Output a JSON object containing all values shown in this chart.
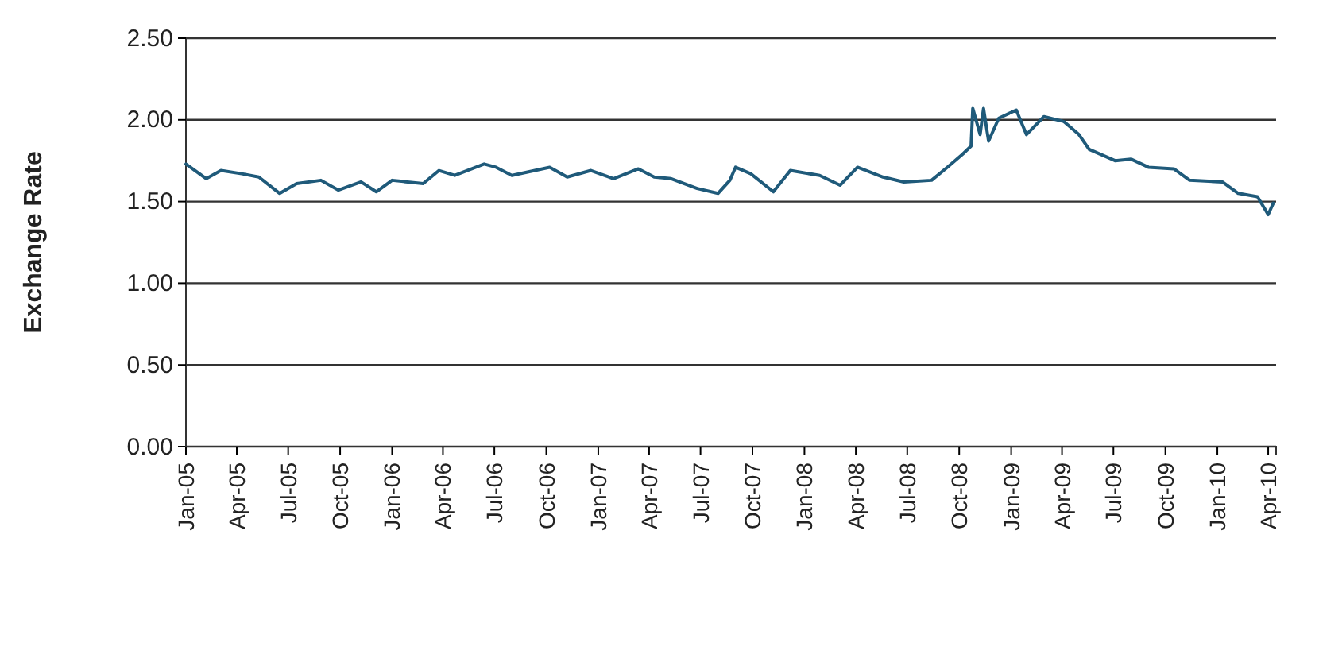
{
  "chart_data": {
    "type": "line",
    "ylabel": "Exchange Rate",
    "x": [
      "2005-01-01",
      "2005-02-06",
      "2005-03-04",
      "2005-04-10",
      "2005-05-10",
      "2005-06-16",
      "2005-07-16",
      "2005-08-28",
      "2005-09-28",
      "2005-11-07",
      "2005-12-04",
      "2006-01-01",
      "2006-02-25",
      "2006-03-25",
      "2006-04-22",
      "2006-06-13",
      "2006-07-04",
      "2006-08-01",
      "2006-10-07",
      "2006-11-07",
      "2006-12-19",
      "2007-01-28",
      "2007-03-13",
      "2007-04-10",
      "2007-05-10",
      "2007-06-25",
      "2007-08-01",
      "2007-08-22",
      "2007-09-01",
      "2007-09-28",
      "2007-11-07",
      "2007-12-07",
      "2008-01-28",
      "2008-03-04",
      "2008-04-04",
      "2008-05-19",
      "2008-06-25",
      "2008-08-13",
      "2008-09-10",
      "2008-10-07",
      "2008-10-22",
      "2008-10-25",
      "2008-11-07",
      "2008-11-13",
      "2008-11-22",
      "2008-12-10",
      "2009-01-10",
      "2009-01-28",
      "2009-02-28",
      "2009-04-04",
      "2009-05-01",
      "2009-05-19",
      "2009-07-04",
      "2009-08-01",
      "2009-09-01",
      "2009-10-16",
      "2009-11-13",
      "2010-01-10",
      "2010-02-07",
      "2010-03-13",
      "2010-04-01",
      "2010-04-10"
    ],
    "series": [
      {
        "color": "#1f5a7a",
        "values": [
          1.73,
          1.64,
          1.69,
          1.67,
          1.65,
          1.55,
          1.61,
          1.63,
          1.57,
          1.62,
          1.56,
          1.63,
          1.61,
          1.69,
          1.66,
          1.73,
          1.71,
          1.66,
          1.71,
          1.65,
          1.69,
          1.64,
          1.7,
          1.65,
          1.64,
          1.58,
          1.55,
          1.63,
          1.71,
          1.67,
          1.56,
          1.69,
          1.66,
          1.6,
          1.71,
          1.65,
          1.62,
          1.63,
          1.71,
          1.79,
          1.84,
          2.07,
          1.91,
          2.07,
          1.87,
          2.01,
          2.06,
          1.91,
          2.02,
          1.99,
          1.91,
          1.82,
          1.75,
          1.76,
          1.71,
          1.7,
          1.63,
          1.62,
          1.55,
          1.53,
          1.42,
          1.49
        ]
      }
    ],
    "xlim": [
      "2005-01-01",
      "2010-04-15"
    ],
    "xticks": [
      {
        "value": "2005-01-01",
        "label": "Jan-05"
      },
      {
        "value": "2005-04-01",
        "label": "Apr-05"
      },
      {
        "value": "2005-07-01",
        "label": "Jul-05"
      },
      {
        "value": "2005-10-01",
        "label": "Oct-05"
      },
      {
        "value": "2006-01-01",
        "label": "Jan-06"
      },
      {
        "value": "2006-04-01",
        "label": "Apr-06"
      },
      {
        "value": "2006-07-01",
        "label": "Jul-06"
      },
      {
        "value": "2006-10-01",
        "label": "Oct-06"
      },
      {
        "value": "2007-01-01",
        "label": "Jan-07"
      },
      {
        "value": "2007-04-01",
        "label": "Apr-07"
      },
      {
        "value": "2007-07-01",
        "label": "Jul-07"
      },
      {
        "value": "2007-10-01",
        "label": "Oct-07"
      },
      {
        "value": "2008-01-01",
        "label": "Jan-08"
      },
      {
        "value": "2008-04-01",
        "label": "Apr-08"
      },
      {
        "value": "2008-07-01",
        "label": "Jul-08"
      },
      {
        "value": "2008-10-01",
        "label": "Oct-08"
      },
      {
        "value": "2009-01-01",
        "label": "Jan-09"
      },
      {
        "value": "2009-04-01",
        "label": "Apr-09"
      },
      {
        "value": "2009-07-01",
        "label": "Jul-09"
      },
      {
        "value": "2009-10-01",
        "label": "Oct-09"
      },
      {
        "value": "2010-01-01",
        "label": "Jan-10"
      },
      {
        "value": "2010-04-01",
        "label": "Apr-10"
      }
    ],
    "ylim": [
      0,
      2.5
    ],
    "yticks": [
      {
        "value": 0,
        "label": "0.00"
      },
      {
        "value": 0.5,
        "label": "0.50"
      },
      {
        "value": 1,
        "label": "1.00"
      },
      {
        "value": 1.5,
        "label": "1.50"
      },
      {
        "value": 2,
        "label": "2.00"
      },
      {
        "value": 2.5,
        "label": "2.50"
      }
    ],
    "grid": "y",
    "marker": "none",
    "line_style": "solid"
  }
}
